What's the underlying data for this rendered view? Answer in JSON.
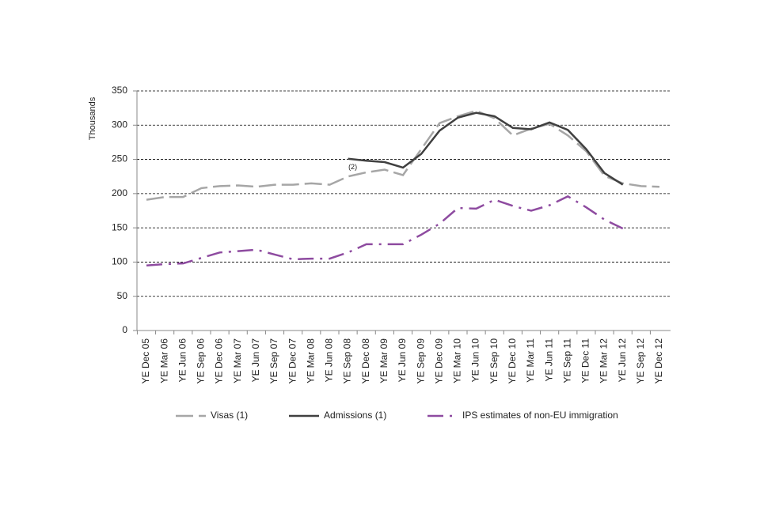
{
  "chart_data": {
    "type": "line",
    "y_label": "Thousands",
    "annotation": "(2)",
    "categories": [
      "YE Dec 05",
      "YE Mar 06",
      "YE Jun 06",
      "YE Sep 06",
      "YE Dec 06",
      "YE Mar 07",
      "YE Jun 07",
      "YE Sep 07",
      "YE Dec 07",
      "YE Mar 08",
      "YE Jun 08",
      "YE Sep 08",
      "YE Dec 08",
      "YE Mar 09",
      "YE Jun 09",
      "YE Sep 09",
      "YE Dec 09",
      "YE Mar 10",
      "YE Jun 10",
      "YE Sep 10",
      "YE Dec 10",
      "YE Mar 11",
      "YE Jun 11",
      "YE Sep 11",
      "YE Dec 11",
      "YE Mar 12",
      "YE Jun 12",
      "YE Sep 12",
      "YE Dec 12"
    ],
    "series": [
      {
        "name": "Visas (1)",
        "color": "#a6a6a6",
        "line_style": "dashed",
        "values": [
          191,
          195,
          195,
          208,
          211,
          212,
          210,
          213,
          213,
          215,
          213,
          225,
          231,
          235,
          227,
          265,
          303,
          313,
          321,
          310,
          285,
          295,
          302,
          285,
          262,
          226,
          215,
          211,
          210
        ]
      },
      {
        "name": "Admissions (1)",
        "color": "#404040",
        "line_style": "solid",
        "values": [
          null,
          null,
          null,
          null,
          null,
          null,
          null,
          null,
          null,
          null,
          null,
          251,
          248,
          246,
          238,
          258,
          292,
          311,
          318,
          313,
          296,
          294,
          304,
          293,
          265,
          230,
          213,
          null,
          null
        ]
      },
      {
        "name": "IPS estimates of non-EU immigration",
        "color": "#8e4ba0",
        "line_style": "dashdot",
        "values": [
          95,
          97,
          98,
          106,
          114,
          116,
          118,
          111,
          104,
          105,
          105,
          114,
          126,
          126,
          126,
          140,
          156,
          179,
          178,
          191,
          182,
          175,
          183,
          196,
          180,
          162,
          149,
          null,
          null
        ]
      }
    ],
    "ylim": [
      0,
      350
    ],
    "yticks": [
      0,
      50,
      100,
      150,
      200,
      250,
      300,
      350
    ],
    "grid": true
  }
}
